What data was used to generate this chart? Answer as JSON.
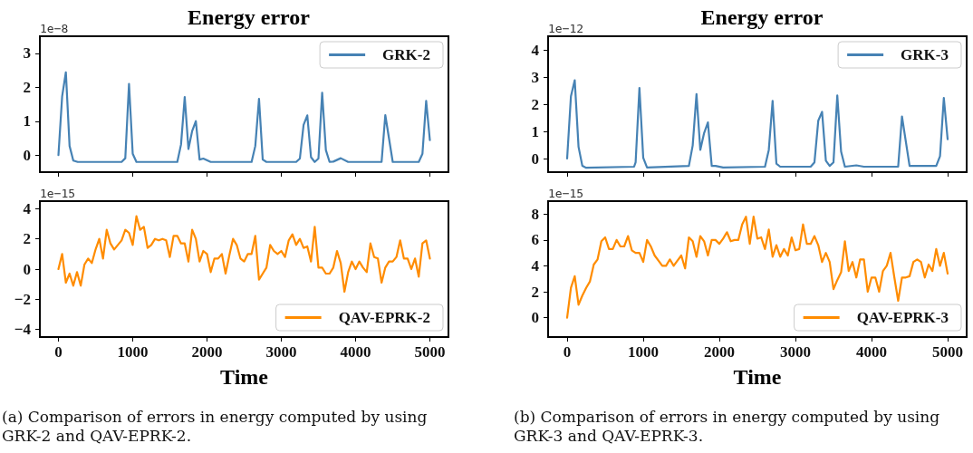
{
  "chart_data": [
    {
      "type": "line",
      "title": "Energy error",
      "series": [
        {
          "name": "GRK-2",
          "color": "#4682b4",
          "x": [
            0,
            50,
            100,
            150,
            200,
            260,
            850,
            900,
            950,
            1000,
            1050,
            1600,
            1650,
            1700,
            1750,
            1800,
            1850,
            1900,
            1950,
            2050,
            2600,
            2650,
            2700,
            2750,
            2800,
            3200,
            3250,
            3300,
            3350,
            3400,
            3450,
            3500,
            3550,
            3600,
            3650,
            3700,
            3800,
            3900,
            4350,
            4400,
            4500,
            4850,
            4900,
            4950,
            5000
          ],
          "values": [
            0,
            1.73,
            2.44,
            0.27,
            -0.16,
            -0.2,
            -0.2,
            -0.09,
            2.1,
            0.04,
            -0.2,
            -0.2,
            0.31,
            1.71,
            0.18,
            0.71,
            1.0,
            -0.13,
            -0.1,
            -0.2,
            -0.2,
            0.27,
            1.66,
            -0.13,
            -0.2,
            -0.2,
            -0.1,
            0.89,
            1.17,
            -0.06,
            -0.2,
            -0.1,
            1.84,
            0.15,
            -0.2,
            -0.19,
            -0.09,
            -0.2,
            -0.2,
            1.18,
            -0.2,
            -0.2,
            0.04,
            1.6,
            0.44
          ]
        }
      ],
      "xlim": [
        -250,
        5250
      ],
      "xticks": [
        0,
        1000,
        2000,
        3000,
        4000,
        5000
      ],
      "ylim": [
        -0.5,
        3.5
      ],
      "yticks": [
        0,
        1,
        2,
        3
      ],
      "tick_labels": "y",
      "legend": "top right",
      "annotations": [
        "1e−8"
      ]
    },
    {
      "type": "line",
      "xlabel": "Time",
      "series": [
        {
          "name": "QAV-EPRK-2",
          "color": "#ff8c00",
          "x": [
            0,
            50,
            100,
            150,
            200,
            250,
            300,
            350,
            400,
            450,
            500,
            550,
            600,
            650,
            700,
            750,
            800,
            850,
            900,
            950,
            1000,
            1050,
            1100,
            1150,
            1200,
            1250,
            1300,
            1350,
            1400,
            1450,
            1500,
            1550,
            1600,
            1650,
            1700,
            1750,
            1800,
            1850,
            1900,
            1950,
            2000,
            2050,
            2100,
            2150,
            2200,
            2250,
            2300,
            2350,
            2400,
            2450,
            2500,
            2550,
            2600,
            2650,
            2700,
            2750,
            2800,
            2850,
            2900,
            2950,
            3000,
            3050,
            3100,
            3150,
            3200,
            3250,
            3300,
            3350,
            3400,
            3450,
            3500,
            3550,
            3600,
            3650,
            3700,
            3750,
            3800,
            3850,
            3900,
            3950,
            4000,
            4050,
            4100,
            4150,
            4200,
            4250,
            4300,
            4350,
            4400,
            4450,
            4500,
            4550,
            4600,
            4650,
            4700,
            4750,
            4800,
            4850,
            4900,
            4950,
            5000
          ],
          "values": [
            0,
            1.0,
            -0.9,
            -0.3,
            -1.1,
            -0.2,
            -1.1,
            0.3,
            0.7,
            0.4,
            1.3,
            2.0,
            0.7,
            2.6,
            1.7,
            1.3,
            1.6,
            1.9,
            2.6,
            2.4,
            1.6,
            3.5,
            2.6,
            2.8,
            1.4,
            1.6,
            2.0,
            1.9,
            2.0,
            1.9,
            0.8,
            2.2,
            2.2,
            1.7,
            1.7,
            0.5,
            2.6,
            2.0,
            0.5,
            1.2,
            1.0,
            -0.2,
            0.7,
            0.7,
            1.0,
            -0.3,
            0.9,
            2.0,
            1.6,
            0.7,
            0.5,
            1.0,
            1.0,
            2.2,
            -0.7,
            -0.3,
            0.1,
            1.6,
            1.2,
            1.0,
            1.2,
            0.8,
            1.9,
            2.3,
            1.6,
            2.0,
            1.4,
            1.5,
            0.5,
            2.8,
            0.1,
            0.1,
            -0.3,
            -0.3,
            0.1,
            1.2,
            0.4,
            -1.5,
            -0.2,
            0.5,
            0,
            0.5,
            0.1,
            -0.2,
            1.7,
            0.8,
            0.7,
            -0.9,
            0.1,
            0.5,
            0.5,
            0.8,
            1.9,
            0.7,
            0.7,
            0,
            0.7,
            -0.5,
            1.7,
            1.9,
            0.7
          ]
        }
      ],
      "xlim": [
        -250,
        5250
      ],
      "xticks": [
        0,
        1000,
        2000,
        3000,
        4000,
        5000
      ],
      "ylim": [
        -4.5,
        4.5
      ],
      "yticks": [
        {
          "value": -4,
          "label": "−4"
        },
        {
          "value": -2,
          "label": "−2"
        },
        0,
        2,
        4
      ],
      "legend": "bottom right",
      "annotations": [
        "1e−15",
        "(a) Comparison of errors in energy computed by using GRK-2 and QAV-EPRK-2."
      ]
    },
    {
      "type": "line",
      "title": "Energy error",
      "series": [
        {
          "name": "GRK-3",
          "color": "#4682b4",
          "x": [
            0,
            50,
            100,
            150,
            200,
            250,
            880,
            900,
            950,
            1000,
            1050,
            1600,
            1650,
            1700,
            1750,
            1800,
            1850,
            1900,
            1950,
            2050,
            2600,
            2650,
            2700,
            2750,
            2800,
            3200,
            3250,
            3300,
            3350,
            3400,
            3450,
            3500,
            3550,
            3600,
            3650,
            3800,
            3900,
            4350,
            4400,
            4500,
            4850,
            4900,
            4950,
            5000
          ],
          "values": [
            0,
            2.29,
            2.88,
            0.43,
            -0.27,
            -0.34,
            -0.3,
            -0.14,
            2.6,
            0.03,
            -0.33,
            -0.27,
            0.48,
            2.37,
            0.32,
            0.94,
            1.33,
            -0.27,
            -0.27,
            -0.33,
            -0.3,
            0.32,
            2.12,
            -0.19,
            -0.3,
            -0.3,
            -0.14,
            1.39,
            1.72,
            -0.08,
            -0.27,
            -0.14,
            2.32,
            0.26,
            -0.3,
            -0.25,
            -0.3,
            -0.3,
            1.55,
            -0.27,
            -0.27,
            0.09,
            2.23,
            0.71
          ]
        }
      ],
      "xlim": [
        -250,
        5250
      ],
      "xticks": [
        0,
        1000,
        2000,
        3000,
        4000,
        5000
      ],
      "ylim": [
        -0.5,
        4.5
      ],
      "yticks": [
        0,
        1,
        2,
        3,
        4
      ],
      "tick_labels": "y",
      "legend": "top right",
      "annotations": [
        "1e−12"
      ]
    },
    {
      "type": "line",
      "xlabel": "Time",
      "series": [
        {
          "name": "QAV-EPRK-3",
          "color": "#ff8c00",
          "x": [
            0,
            50,
            100,
            150,
            200,
            250,
            300,
            350,
            400,
            450,
            500,
            550,
            600,
            650,
            700,
            750,
            800,
            850,
            900,
            950,
            1000,
            1050,
            1100,
            1150,
            1200,
            1250,
            1300,
            1350,
            1400,
            1450,
            1500,
            1550,
            1600,
            1650,
            1700,
            1750,
            1800,
            1850,
            1900,
            1950,
            2000,
            2050,
            2100,
            2150,
            2200,
            2250,
            2300,
            2350,
            2400,
            2450,
            2500,
            2550,
            2600,
            2650,
            2700,
            2750,
            2800,
            2850,
            2900,
            2950,
            3000,
            3050,
            3100,
            3150,
            3200,
            3250,
            3300,
            3350,
            3400,
            3450,
            3500,
            3550,
            3600,
            3650,
            3700,
            3750,
            3800,
            3850,
            3900,
            3950,
            4000,
            4050,
            4100,
            4150,
            4200,
            4250,
            4300,
            4350,
            4400,
            4450,
            4500,
            4550,
            4600,
            4650,
            4700,
            4750,
            4800,
            4850,
            4900,
            4950,
            5000
          ],
          "values": [
            0,
            2.3,
            3.2,
            1.0,
            1.7,
            2.3,
            2.8,
            4.1,
            4.5,
            5.9,
            6.2,
            5.3,
            5.3,
            6.0,
            5.5,
            5.5,
            6.3,
            5.2,
            5.0,
            5.0,
            4.3,
            6.0,
            5.5,
            4.8,
            4.4,
            4.0,
            4.0,
            4.5,
            4.0,
            4.4,
            4.8,
            3.8,
            6.2,
            5.9,
            4.7,
            6.3,
            5.9,
            4.8,
            6.0,
            6.0,
            5.7,
            6.1,
            6.6,
            5.9,
            6.0,
            6.0,
            7.2,
            7.8,
            5.7,
            7.8,
            6.1,
            6.2,
            5.3,
            6.8,
            4.7,
            5.6,
            4.7,
            5.3,
            4.8,
            6.2,
            5.2,
            5.3,
            7.2,
            5.7,
            5.7,
            6.3,
            5.6,
            4.3,
            5.0,
            4.3,
            2.2,
            2.9,
            3.5,
            5.9,
            3.6,
            4.3,
            3.1,
            4.5,
            4.5,
            2.0,
            3.1,
            3.1,
            2.0,
            3.6,
            4.0,
            5.0,
            3.1,
            1.3,
            3.1,
            3.1,
            3.2,
            4.3,
            4.5,
            4.3,
            3.1,
            4.1,
            3.6,
            5.3,
            4.0,
            5.0,
            3.4
          ]
        }
      ],
      "xlim": [
        -250,
        5250
      ],
      "xticks": [
        0,
        1000,
        2000,
        3000,
        4000,
        5000
      ],
      "ylim": [
        -1.5,
        9
      ],
      "yticks": [
        0,
        2,
        4,
        6,
        8
      ],
      "legend": "bottom right",
      "annotations": [
        "1e−15",
        "(b) Comparison of errors in energy computed by using GRK-3 and QAV-EPRK-3."
      ]
    }
  ]
}
